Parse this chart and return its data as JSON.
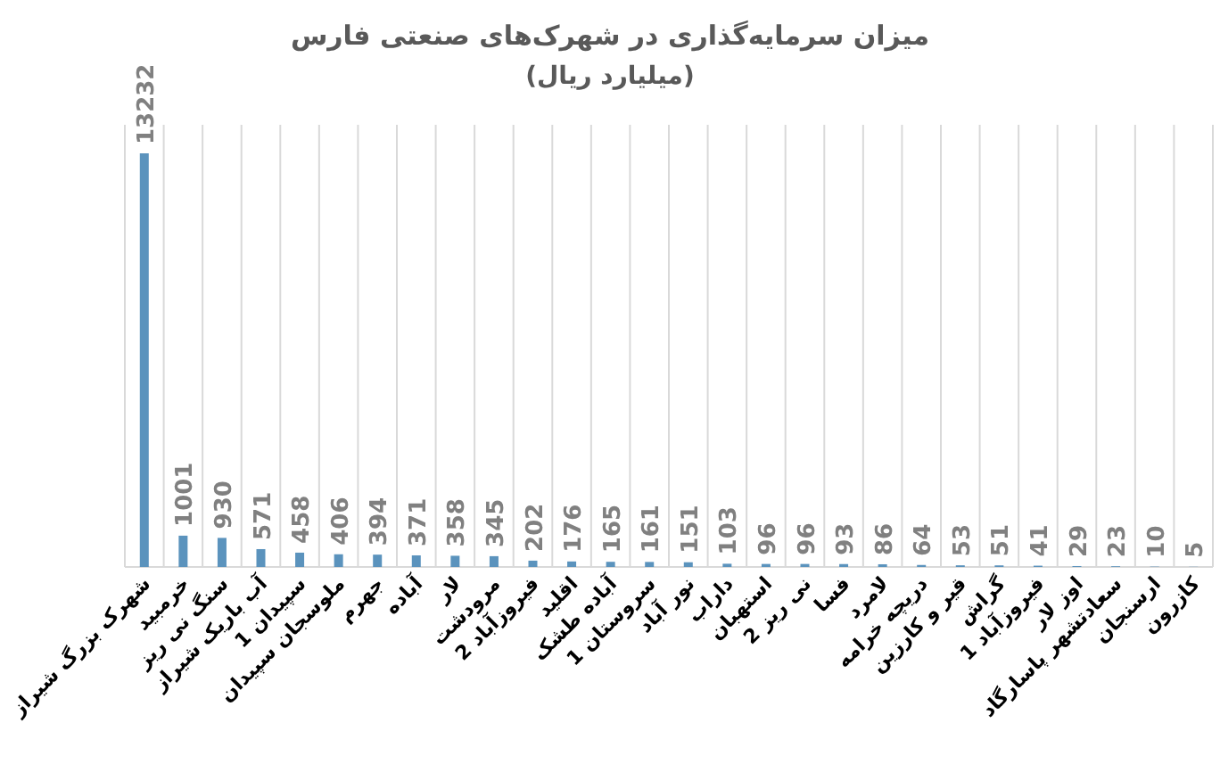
{
  "chart_data": {
    "type": "bar",
    "title": "میزان سرمایه‌گذاری در شهرک‌های صنعتی فارس",
    "subtitle": "(میلیارد ریال)",
    "categories": [
      "شهرک بزرگ شیراز",
      "خرمبید",
      "سنگ نی ریز",
      "آب باریک شیراز",
      "سپیدان 1",
      "ملوسجان سپیدان",
      "جهرم",
      "آباده",
      "لار",
      "مرودشت",
      "فیروزآباد 2",
      "اقلید",
      "آباده طشک",
      "سروستان 1",
      "نور آباد",
      "داراب",
      "استهبان",
      "نی ریز 2",
      "فسا",
      "لامرد",
      "دریچه خرامه",
      "قیر و کارزین",
      "گراش",
      "فیروزآباد 1",
      "اوز لار",
      "سعادتشهر پاسارگاد",
      "ارسنجان",
      "کازرون"
    ],
    "values": [
      13232,
      1001,
      930,
      571,
      458,
      406,
      394,
      371,
      358,
      345,
      202,
      176,
      165,
      161,
      151,
      103,
      96,
      96,
      93,
      86,
      64,
      53,
      51,
      41,
      29,
      23,
      10,
      5
    ],
    "color": "#5b93bd",
    "data_labels": true,
    "grid": "x"
  }
}
